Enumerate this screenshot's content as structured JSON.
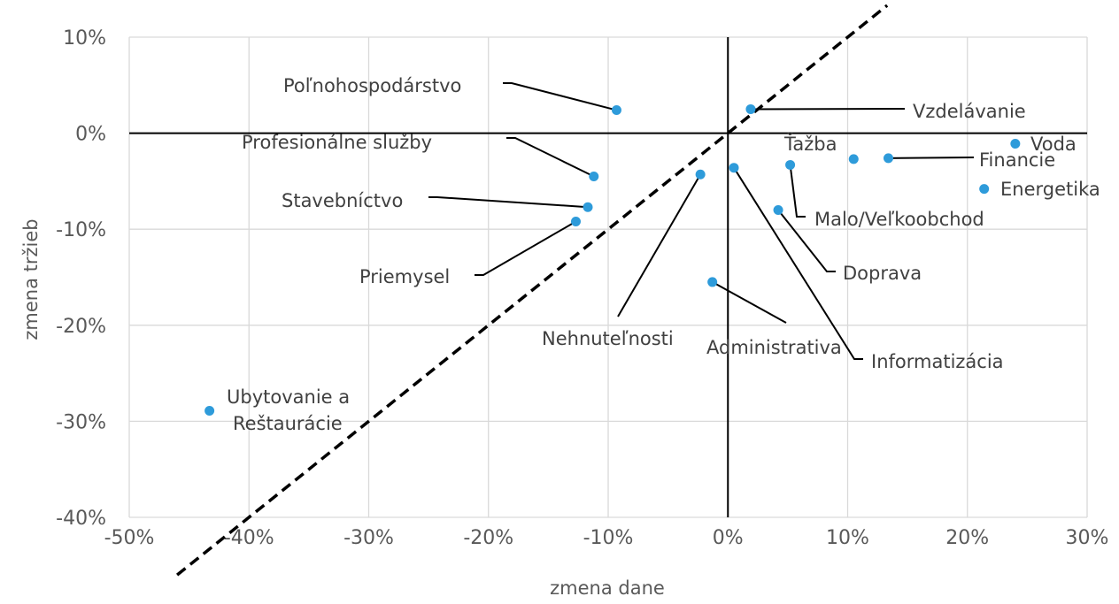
{
  "chart_data": {
    "type": "scatter",
    "xlabel": "zmena dane",
    "ylabel": "zmena tržieb",
    "xlim": [
      -0.5,
      0.3
    ],
    "ylim": [
      -0.4,
      0.1
    ],
    "x_ticks": [
      -0.5,
      -0.4,
      -0.3,
      -0.2,
      -0.1,
      0,
      0.1,
      0.2,
      0.3
    ],
    "x_tick_labels": [
      "-50%",
      "-40%",
      "-30%",
      "-20%",
      "-10%",
      "0%",
      "10%",
      "20%",
      "30%"
    ],
    "y_ticks": [
      0.1,
      0,
      -0.1,
      -0.2,
      -0.3,
      -0.4
    ],
    "y_tick_labels": [
      "10%",
      "0%",
      "-10%",
      "-20%",
      "-30%",
      "-40%"
    ],
    "grid": true,
    "marker_color": "#2E9BDA",
    "reference_line": {
      "style": "dashed",
      "description": "diagonal y = x"
    },
    "points": [
      {
        "label": "Poľnohospodárstvo",
        "x": -0.093,
        "y": 0.024
      },
      {
        "label": "Vzdelávanie",
        "x": 0.019,
        "y": 0.025
      },
      {
        "label": "Profesionálne služby",
        "x": -0.112,
        "y": -0.045
      },
      {
        "label": "Stavebníctvo",
        "x": -0.117,
        "y": -0.077
      },
      {
        "label": "Priemysel",
        "x": -0.127,
        "y": -0.092
      },
      {
        "label": "Nehnuteľnosti",
        "x": -0.023,
        "y": -0.043
      },
      {
        "label": "Informatizácia",
        "x": 0.005,
        "y": -0.036
      },
      {
        "label": "Administrativa",
        "x": -0.013,
        "y": -0.155
      },
      {
        "label": "Doprava",
        "x": 0.042,
        "y": -0.08
      },
      {
        "label": "Malo/Veľkoobchod",
        "x": 0.052,
        "y": -0.033
      },
      {
        "label": "Ťažba",
        "x": 0.105,
        "y": -0.027
      },
      {
        "label": "Financie",
        "x": 0.134,
        "y": -0.026
      },
      {
        "label": "Voda",
        "x": 0.24,
        "y": -0.011
      },
      {
        "label": "Energetika",
        "x": 0.214,
        "y": -0.058
      },
      {
        "label": "Ubytovanie a Reštaurácie",
        "x": -0.433,
        "y": -0.289
      }
    ]
  }
}
